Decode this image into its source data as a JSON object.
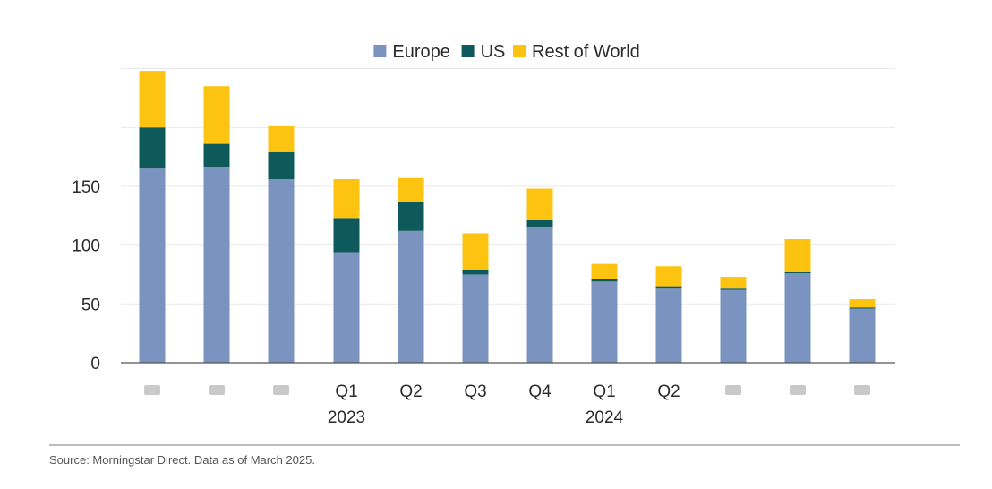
{
  "chart_data": {
    "type": "bar",
    "stacked": true,
    "categories": [
      "",
      "",
      "",
      "Q1",
      "Q2",
      "Q3",
      "Q4",
      "Q1",
      "Q2",
      "",
      "",
      ""
    ],
    "year_labels": [
      {
        "label": "2023",
        "category_index": 3
      },
      {
        "label": "2024",
        "category_index": 7
      }
    ],
    "series": [
      {
        "name": "Europe",
        "color": "#7b93bf",
        "values": [
          165,
          166,
          156,
          94,
          112,
          75,
          115,
          69,
          63,
          62,
          76,
          46
        ]
      },
      {
        "name": "US",
        "color": "#0e5a5a",
        "values": [
          35,
          20,
          23,
          29,
          25,
          4,
          6,
          2,
          2,
          1,
          1,
          1
        ]
      },
      {
        "name": "Rest of World",
        "color": "#fcc310",
        "values": [
          48,
          49,
          22,
          33,
          20,
          31,
          27,
          13,
          17,
          10,
          28,
          7
        ]
      }
    ],
    "yticks": [
      0,
      50,
      100,
      150
    ],
    "ylim": [
      0,
      250
    ],
    "grid": true,
    "legend": "top-center"
  },
  "source_note": "Source: Morningstar Direct. Data as of March 2025."
}
